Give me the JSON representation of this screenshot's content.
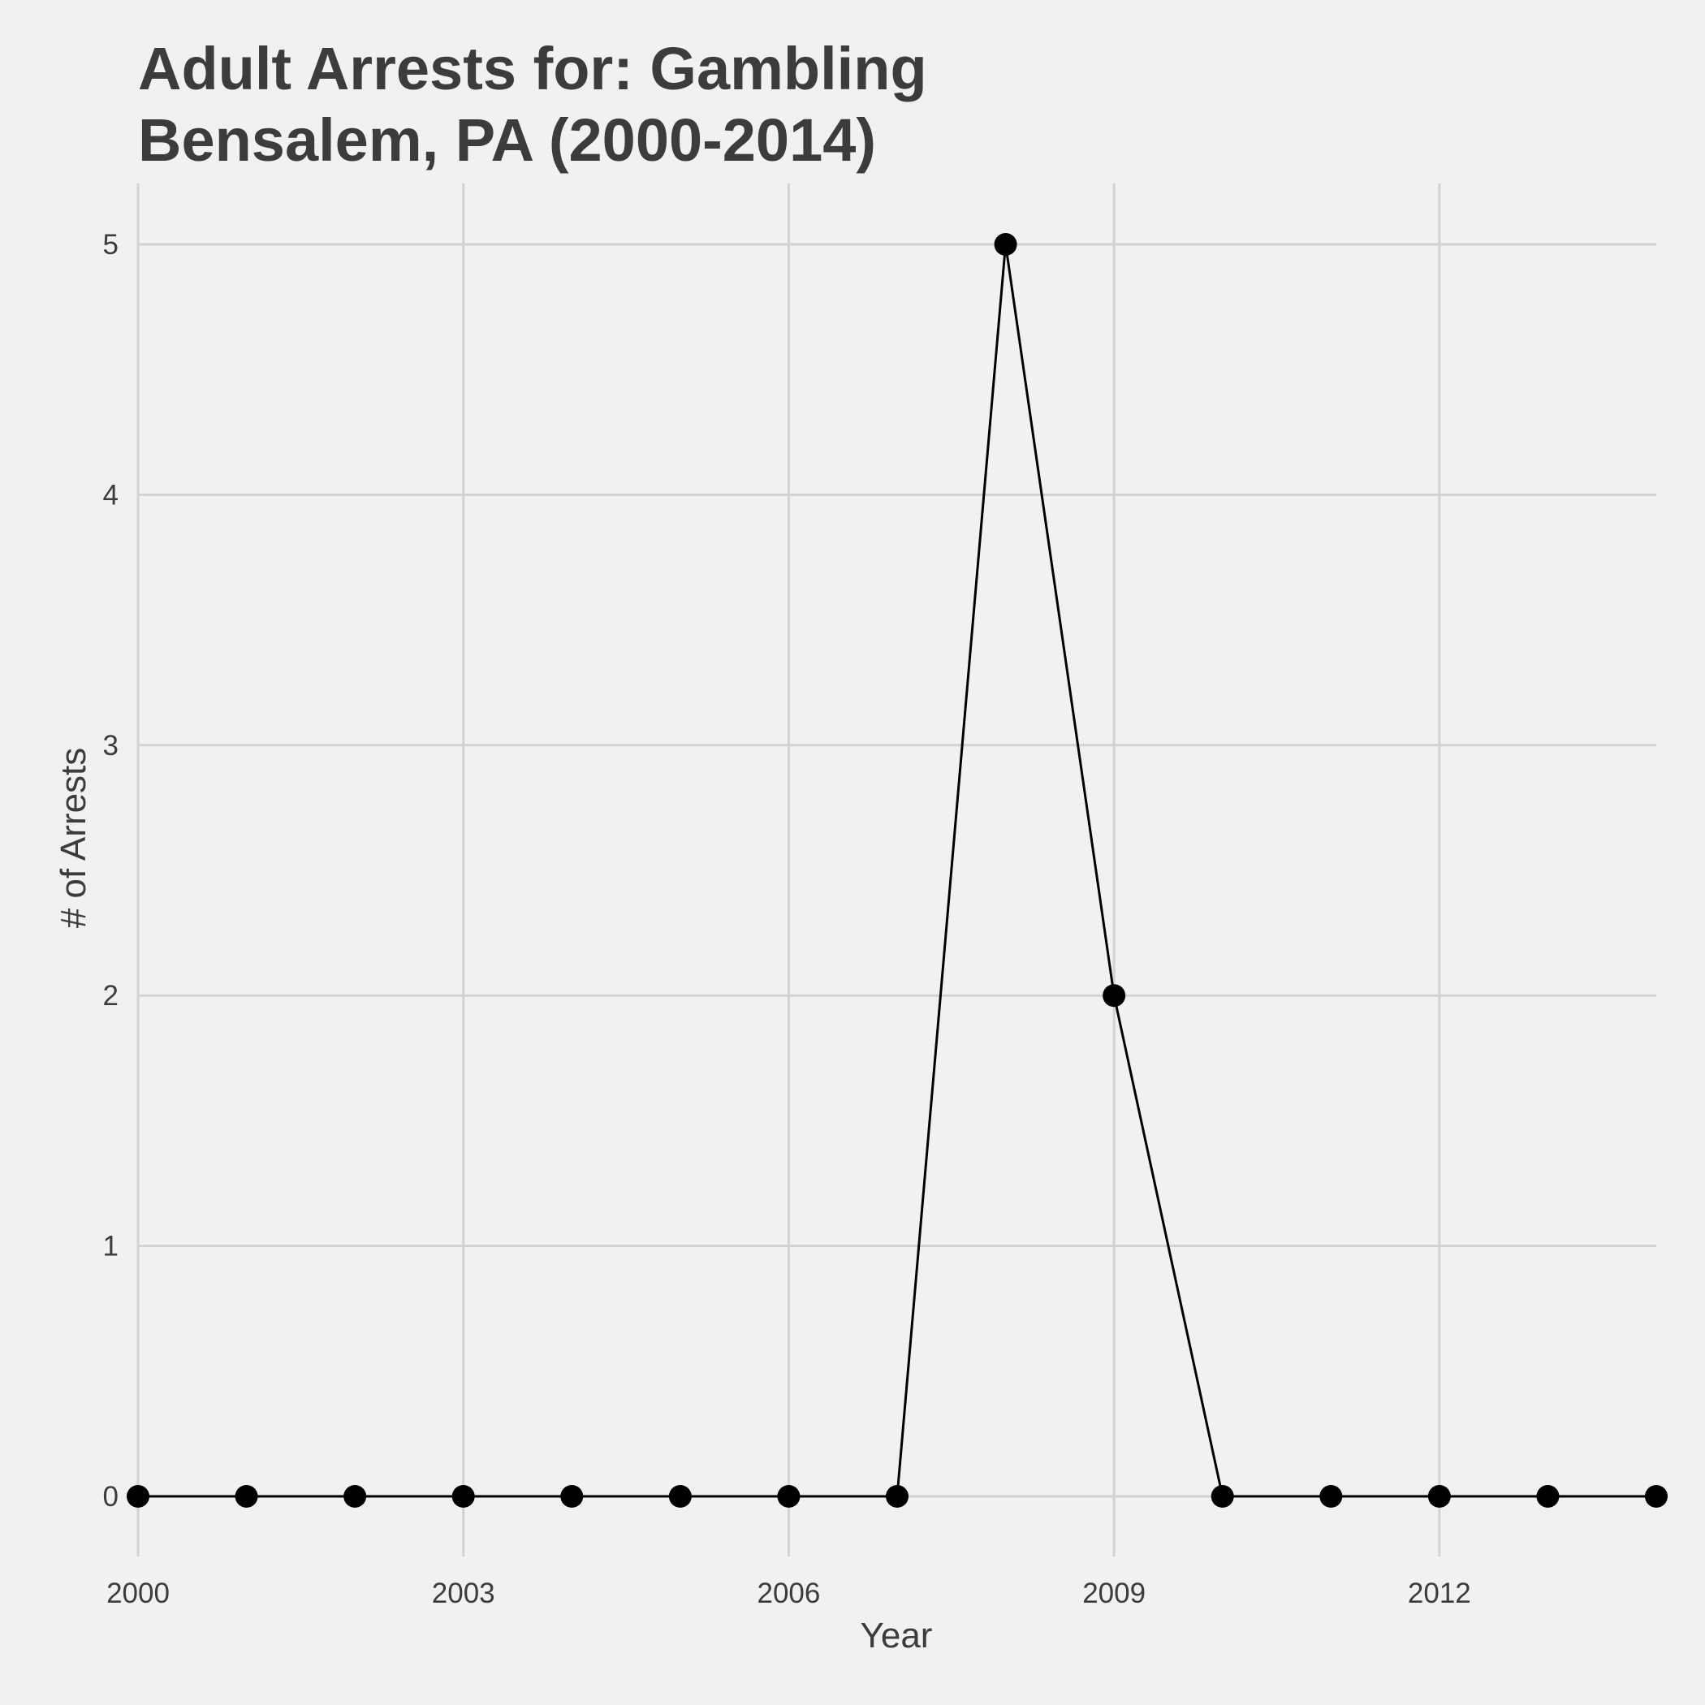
{
  "chart_data": {
    "type": "line",
    "title": [
      "Adult Arrests for: Gambling",
      "Bensalem, PA (2000-2014)"
    ],
    "xlabel": "Year",
    "ylabel": "# of Arrests",
    "x": [
      2000,
      2001,
      2002,
      2003,
      2004,
      2005,
      2006,
      2007,
      2008,
      2009,
      2010,
      2011,
      2012,
      2013,
      2014
    ],
    "series": [
      {
        "name": "Gambling",
        "values": [
          0,
          0,
          0,
          0,
          0,
          0,
          0,
          0,
          5,
          2,
          0,
          0,
          0,
          0,
          0
        ]
      }
    ],
    "xlim": [
      2000,
      2014
    ],
    "ylim": [
      0,
      5
    ],
    "x_ticks": [
      2000,
      2003,
      2006,
      2009,
      2012
    ],
    "y_ticks": [
      0,
      1,
      2,
      3,
      4,
      5
    ],
    "grid": true,
    "legend": "none",
    "colors": {
      "background": "#f1f1f1",
      "grid": "#d2d2d2",
      "line": "#000000",
      "text": "#3c3c3c"
    }
  }
}
